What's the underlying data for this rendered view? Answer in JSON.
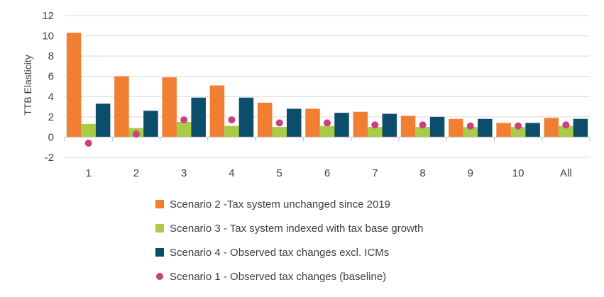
{
  "chart_data": {
    "type": "bar",
    "title": "",
    "xlabel": "",
    "ylabel": "TTB Elasticity",
    "ylim": [
      -2,
      12
    ],
    "yticks": [
      -2,
      0,
      2,
      4,
      6,
      8,
      10,
      12
    ],
    "ytick_labels": [
      "-2",
      "0",
      "2",
      "4",
      "6",
      "8",
      "10",
      "12"
    ],
    "grid": true,
    "legend_position": "bottom",
    "categories": [
      "1",
      "2",
      "3",
      "4",
      "5",
      "6",
      "7",
      "8",
      "9",
      "10",
      "All"
    ],
    "series": [
      {
        "name": "Scenario 2 -Tax system unchanged since 2019",
        "kind": "bar",
        "color": "#F07F32",
        "values": [
          10.3,
          6.0,
          5.9,
          5.1,
          3.4,
          2.8,
          2.5,
          2.1,
          1.8,
          1.4,
          1.9
        ]
      },
      {
        "name": "Scenario 3 - Tax system indexed with tax base growth",
        "kind": "bar",
        "color": "#A8CC45",
        "values": [
          1.3,
          0.9,
          1.5,
          1.1,
          1.0,
          1.1,
          1.0,
          1.0,
          1.0,
          1.0,
          1.1
        ]
      },
      {
        "name": "Scenario 4 - Observed tax changes excl. ICMs",
        "kind": "bar",
        "color": "#0B4D6B",
        "values": [
          3.3,
          2.6,
          3.9,
          3.9,
          2.8,
          2.4,
          2.3,
          2.0,
          1.8,
          1.4,
          1.8
        ]
      },
      {
        "name": "Scenario 1 - Observed tax changes (baseline)",
        "kind": "marker",
        "color": "#D23C83",
        "values": [
          -0.6,
          0.3,
          1.7,
          1.7,
          1.4,
          1.4,
          1.2,
          1.2,
          1.1,
          1.1,
          1.2
        ]
      }
    ]
  }
}
